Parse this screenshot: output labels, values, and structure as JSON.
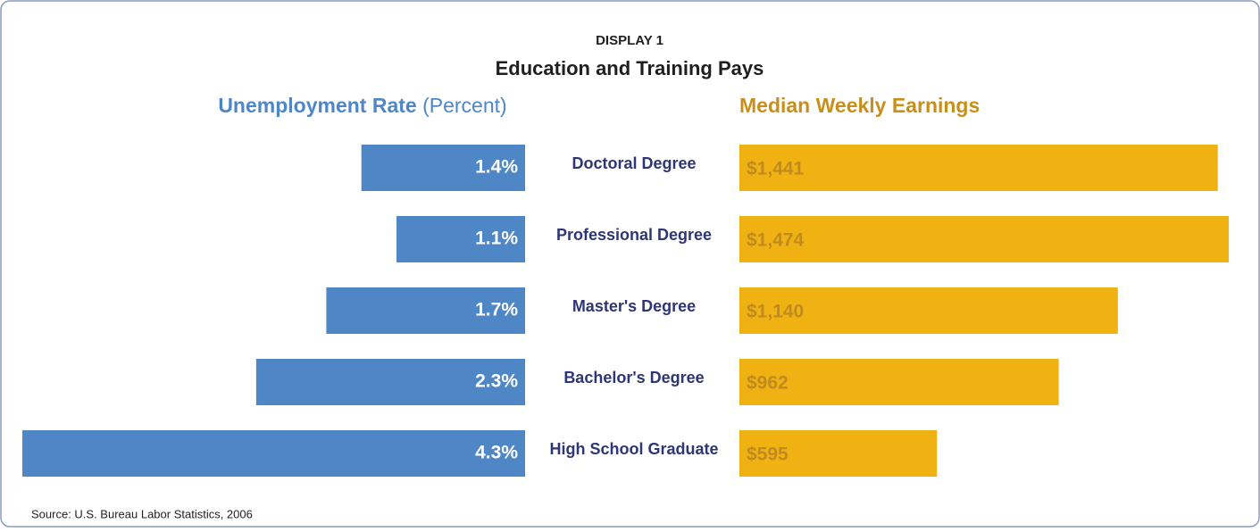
{
  "chart_data": {
    "type": "bar",
    "display": "DISPLAY 1",
    "title": "Education and Training Pays",
    "source": "Source: U.S. Bureau Labor Statistics, 2006",
    "categories": [
      "Doctoral Degree",
      "Professional Degree",
      "Master's Degree",
      "Bachelor's Degree",
      "High School Graduate"
    ],
    "series": [
      {
        "name": "Unemployment Rate",
        "unit": "(Percent)",
        "color": "#4f86c6",
        "values": [
          1.4,
          1.1,
          1.7,
          2.3,
          4.3
        ],
        "value_labels": [
          "1.4%",
          "1.1%",
          "1.7%",
          "2.3%",
          "4.3%"
        ]
      },
      {
        "name": "Median Weekly Earnings",
        "color": "#f0b213",
        "values": [
          1441,
          1474,
          1140,
          962,
          595
        ],
        "value_labels": [
          "$1,441",
          "$1,474",
          "$1,140",
          "$962",
          "$595"
        ]
      }
    ]
  }
}
